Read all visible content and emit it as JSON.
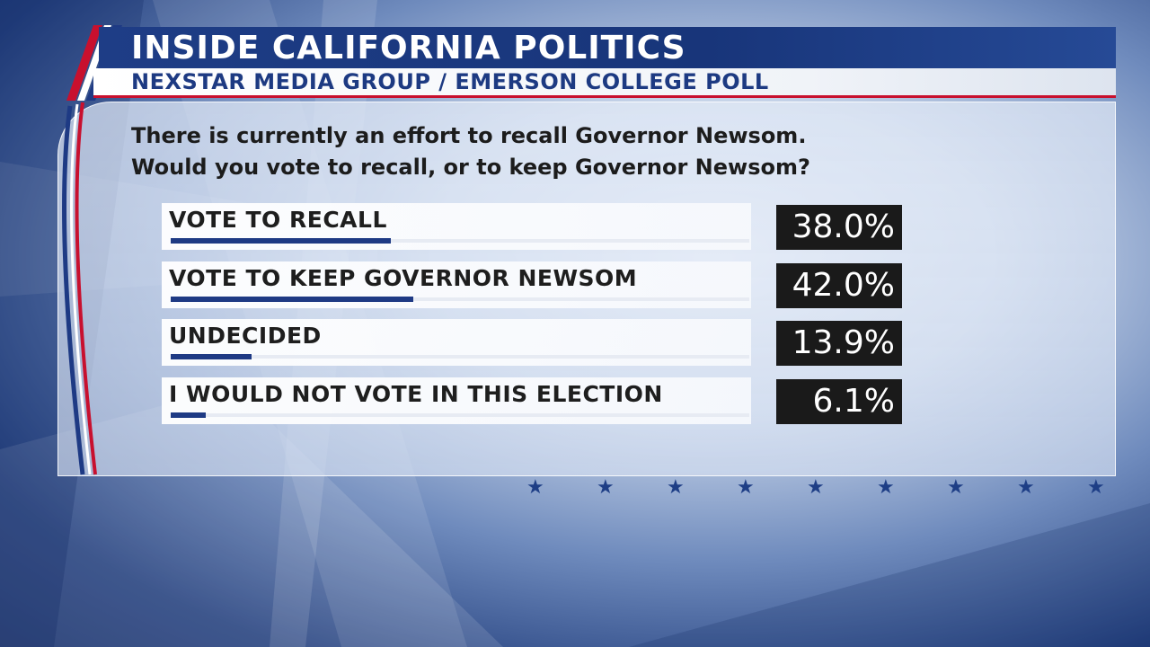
{
  "header": {
    "title": "INSIDE CALIFORNIA POLITICS",
    "subtitle": "NEXSTAR MEDIA GROUP / EMERSON COLLEGE POLL"
  },
  "question": {
    "line1": "There is currently an effort to recall Governor Newsom.",
    "line2": "Would you vote to recall, or to keep Governor Newsom?"
  },
  "colors": {
    "navy": "#1e3a84",
    "red": "#c8102e",
    "value_box": "#1a1a1a"
  },
  "chart_data": {
    "type": "bar",
    "categories": [
      "VOTE TO RECALL",
      "VOTE TO KEEP GOVERNOR NEWSOM",
      "UNDECIDED",
      "I WOULD NOT VOTE IN THIS ELECTION"
    ],
    "values": [
      38.0,
      42.0,
      13.9,
      6.1
    ],
    "value_labels": [
      "38.0%",
      "42.0%",
      "13.9%",
      "6.1%"
    ],
    "ylim": [
      0,
      100
    ],
    "orientation": "horizontal"
  }
}
